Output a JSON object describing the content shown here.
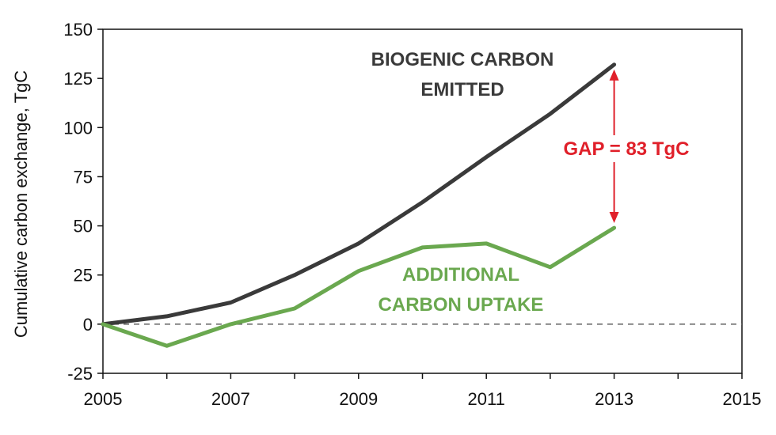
{
  "chart_data": {
    "type": "line",
    "ylabel": "Cumulative carbon exchange, TgC",
    "xlabel": "",
    "xlim": [
      2005,
      2015
    ],
    "ylim": [
      -25,
      150
    ],
    "xticks": [
      2005,
      2007,
      2009,
      2011,
      2013,
      2015
    ],
    "yticks": [
      -25,
      0,
      25,
      50,
      75,
      100,
      125,
      150
    ],
    "grid": false,
    "zero_line": "dashed",
    "series": [
      {
        "name": "BIOGENIC CARBON EMITTED",
        "color": "#3a3a3a",
        "x": [
          2005,
          2006,
          2007,
          2008,
          2009,
          2010,
          2011,
          2012,
          2013
        ],
        "values": [
          0,
          4,
          11,
          25,
          41,
          62,
          85,
          107,
          132
        ]
      },
      {
        "name": "ADDITIONAL CARBON UPTAKE",
        "color": "#6aa84f",
        "x": [
          2005,
          2006,
          2007,
          2008,
          2009,
          2010,
          2011,
          2012,
          2013
        ],
        "values": [
          0,
          -11,
          0,
          8,
          27,
          39,
          41,
          29,
          49
        ]
      }
    ],
    "annotations": {
      "emitted_line1": "BIOGENIC CARBON",
      "emitted_line2": "EMITTED",
      "uptake_line1": "ADDITIONAL",
      "uptake_line2": "CARBON UPTAKE",
      "gap_label": "GAP = 83 TgC",
      "gap_color": "#e0202a",
      "gap_x": 2013,
      "gap_from": 49,
      "gap_to": 132
    }
  }
}
